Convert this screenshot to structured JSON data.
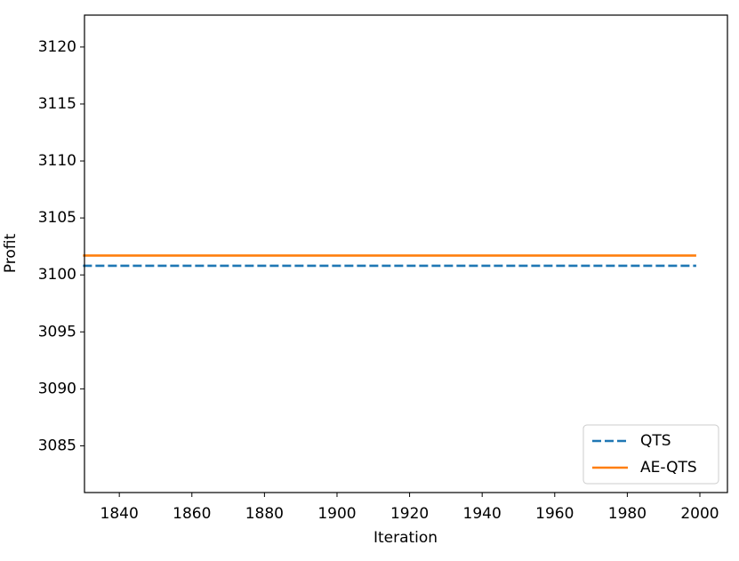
{
  "chart_data": {
    "type": "line",
    "x_label": "Iteration",
    "y_label": "Profit",
    "x": [
      1830,
      1999
    ],
    "series": [
      {
        "name": "QTS",
        "color": "#1f77b4",
        "dash": true,
        "values": [
          3100.8,
          3100.8
        ]
      },
      {
        "name": "AE-QTS",
        "color": "#ff7f0e",
        "dash": false,
        "values": [
          3101.7,
          3101.7
        ]
      }
    ],
    "xlim": [
      1830.4,
      2007.6
    ],
    "xticks": [
      1840,
      1860,
      1880,
      1900,
      1920,
      1940,
      1960,
      1980,
      2000
    ],
    "ylim": [
      3080.9,
      3122.8
    ],
    "yticks": [
      3085,
      3090,
      3095,
      3100,
      3105,
      3110,
      3115,
      3120
    ],
    "legend": "lower right"
  }
}
